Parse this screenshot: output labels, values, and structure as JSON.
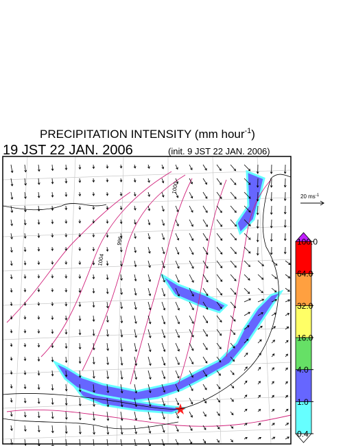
{
  "header": {
    "title_parts": [
      "PRECIPITATION INTENSITY (mm hour",
      "-1",
      ")"
    ],
    "valid_time": "19 JST 22 JAN. 2006",
    "init_time": "(init. 9 JST 22 JAN. 2006)"
  },
  "wind_legend": {
    "label_parts": [
      "20 ms",
      "-1"
    ]
  },
  "contour_labels": [
    "1000",
    "996",
    "1004"
  ],
  "colorbar": {
    "ticks": [
      {
        "value": 0.4,
        "label": "0.4"
      },
      {
        "value": 1,
        "label": "1.0"
      },
      {
        "value": 4,
        "label": "4.0"
      },
      {
        "value": 16,
        "label": "16.0"
      },
      {
        "value": 32,
        "label": "32.0"
      },
      {
        "value": 64,
        "label": "64.0"
      },
      {
        "value": 100,
        "label": "100.0"
      }
    ],
    "colors": [
      "#66ffff",
      "#6666ff",
      "#66e066",
      "#ffff66",
      "#ffa040",
      "#ff0000"
    ],
    "under_color": "#ffffff",
    "over_color": "#c020ff"
  }
}
